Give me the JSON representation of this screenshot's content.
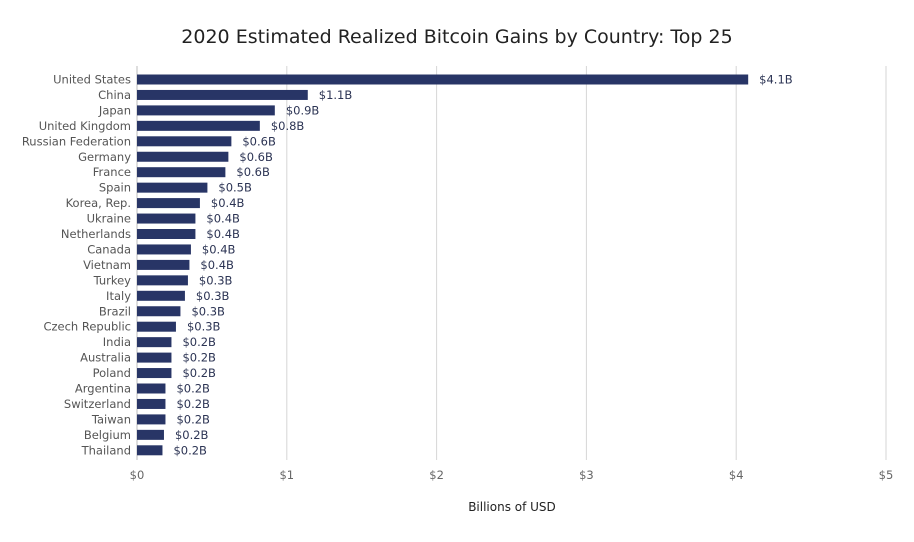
{
  "chart_data": {
    "type": "bar",
    "orientation": "horizontal",
    "title": "2020 Estimated Realized Bitcoin Gains by Country: Top 25",
    "xlabel": "Billions of USD",
    "ylabel": "",
    "xlim": [
      0,
      5
    ],
    "xticks": [
      0,
      1,
      2,
      3,
      4,
      5
    ],
    "xtick_labels": [
      "$0",
      "$1",
      "$2",
      "$3",
      "$4",
      "$5"
    ],
    "grid": "vertical",
    "bar_color": "#283566",
    "categories": [
      "United States",
      "China",
      "Japan",
      "United Kingdom",
      "Russian Federation",
      "Germany",
      "France",
      "Spain",
      "Korea, Rep.",
      "Ukraine",
      "Netherlands",
      "Canada",
      "Vietnam",
      "Turkey",
      "Italy",
      "Brazil",
      "Czech Republic",
      "India",
      "Australia",
      "Poland",
      "Argentina",
      "Switzerland",
      "Taiwan",
      "Belgium",
      "Thailand"
    ],
    "values": [
      4.08,
      1.14,
      0.92,
      0.82,
      0.63,
      0.61,
      0.59,
      0.47,
      0.42,
      0.39,
      0.39,
      0.36,
      0.35,
      0.34,
      0.32,
      0.29,
      0.26,
      0.23,
      0.23,
      0.23,
      0.19,
      0.19,
      0.19,
      0.18,
      0.17
    ],
    "data_labels": [
      "$4.1B",
      "$1.1B",
      "$0.9B",
      "$0.8B",
      "$0.6B",
      "$0.6B",
      "$0.6B",
      "$0.5B",
      "$0.4B",
      "$0.4B",
      "$0.4B",
      "$0.4B",
      "$0.4B",
      "$0.3B",
      "$0.3B",
      "$0.3B",
      "$0.3B",
      "$0.2B",
      "$0.2B",
      "$0.2B",
      "$0.2B",
      "$0.2B",
      "$0.2B",
      "$0.2B",
      "$0.2B"
    ]
  }
}
